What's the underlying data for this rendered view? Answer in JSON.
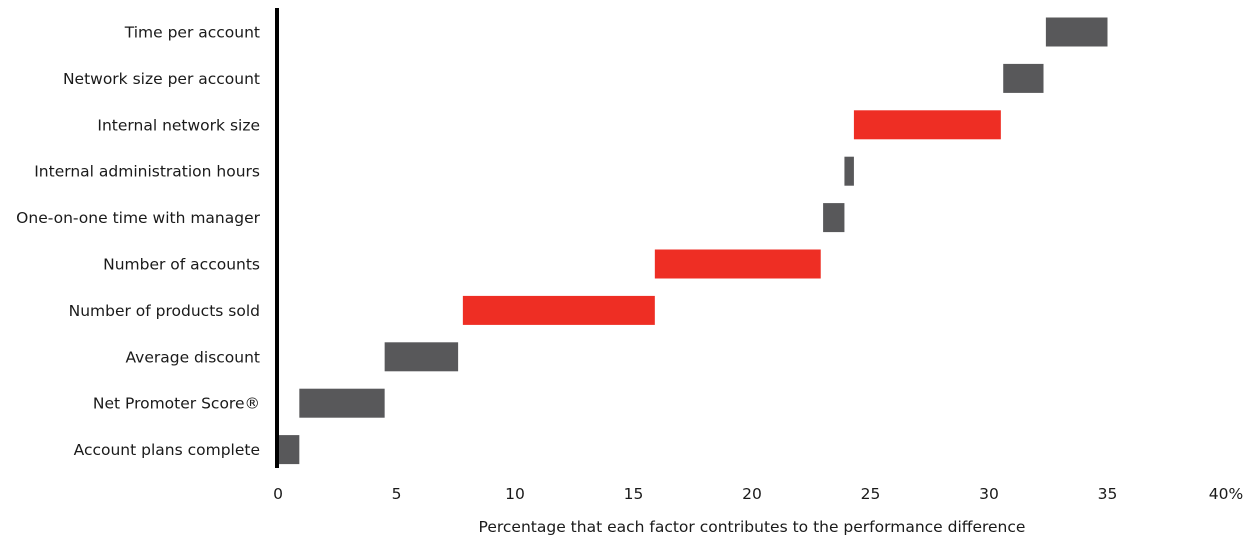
{
  "colors": {
    "neutral": "#58585a",
    "highlight": "#ee2e24",
    "axis": "#000000"
  },
  "chart_data": {
    "type": "bar",
    "subtype": "waterfall-horizontal",
    "title": "",
    "xlabel": "Percentage that each factor contributes to the performance difference",
    "ylabel": "",
    "xlim": [
      0,
      40
    ],
    "xticks": [
      0,
      5,
      10,
      15,
      20,
      25,
      30,
      35,
      40
    ],
    "xtick_labels": [
      "0",
      "5",
      "10",
      "15",
      "20",
      "25",
      "30",
      "35",
      "40%"
    ],
    "grid": false,
    "legend": "none",
    "categories": [
      "Time per account",
      "Network size per account",
      "Internal network size",
      "Internal administration hours",
      "One-on-one time with manager",
      "Number of accounts",
      "Number of products sold",
      "Average discount",
      "Net Promoter Score®",
      "Account plans complete"
    ],
    "start": [
      32.4,
      30.6,
      24.3,
      23.9,
      23.0,
      15.9,
      7.8,
      4.5,
      0.9,
      0.0
    ],
    "end": [
      35.0,
      32.3,
      30.5,
      24.3,
      23.9,
      22.9,
      15.9,
      7.6,
      4.5,
      0.9
    ],
    "values": [
      2.6,
      1.7,
      6.2,
      0.4,
      0.9,
      7.0,
      8.1,
      3.1,
      3.6,
      0.9
    ],
    "highlight": [
      false,
      false,
      true,
      false,
      false,
      true,
      true,
      false,
      false,
      false
    ]
  }
}
